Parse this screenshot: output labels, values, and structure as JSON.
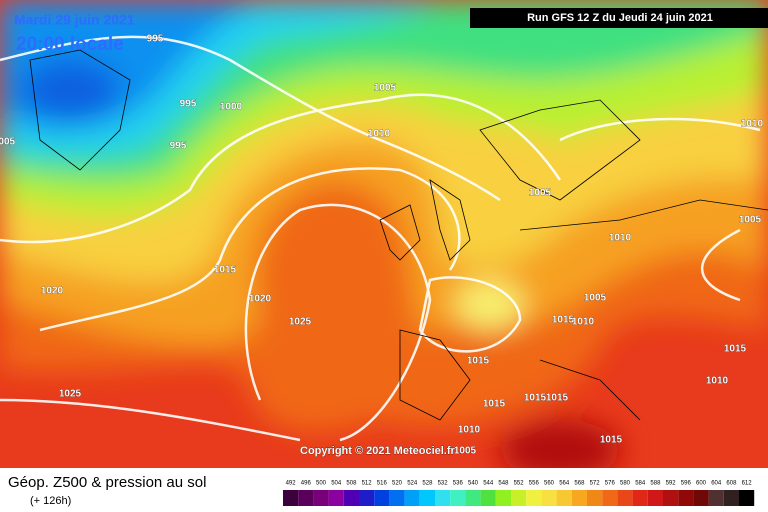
{
  "header": {
    "date": "Mardi 29 juin 2021",
    "time": "20:00 locale",
    "run": "Run GFS 12 Z du Jeudi 24 juin 2021"
  },
  "copyright": "Copyright © 2021 Meteociel.fr",
  "footer": {
    "title": "Géop. Z500 & pression au sol",
    "lead": "(+ 126h)"
  },
  "isobar_labels": [
    995,
    995,
    995,
    1000,
    1005,
    1005,
    1010,
    1005,
    1010,
    1005,
    1010,
    1015,
    1020,
    1020,
    1025,
    1005,
    1015,
    1010,
    1015,
    1025,
    1015,
    1015,
    1015,
    1010,
    1005,
    1015,
    1015,
    1010
  ],
  "legend": {
    "labels": [
      492,
      496,
      500,
      504,
      508,
      512,
      516,
      520,
      524,
      528,
      532,
      536,
      540,
      544,
      548,
      552,
      556,
      560,
      564,
      568,
      572,
      576,
      580,
      584,
      588,
      592,
      596,
      600,
      604,
      608,
      612
    ],
    "colors": [
      "#3c003c",
      "#5a005a",
      "#780078",
      "#8c00a0",
      "#5000b4",
      "#1e1ec8",
      "#0040e0",
      "#0070f0",
      "#00a0f8",
      "#00c8ff",
      "#30e0f0",
      "#40f0c0",
      "#40e880",
      "#50e040",
      "#90f020",
      "#c8f028",
      "#f0f040",
      "#f8e040",
      "#f8c830",
      "#f8a820",
      "#f08818",
      "#f06818",
      "#e84818",
      "#e02818",
      "#d01818",
      "#b01010",
      "#900808",
      "#700808",
      "#503030",
      "#302020",
      "#000000"
    ]
  }
}
